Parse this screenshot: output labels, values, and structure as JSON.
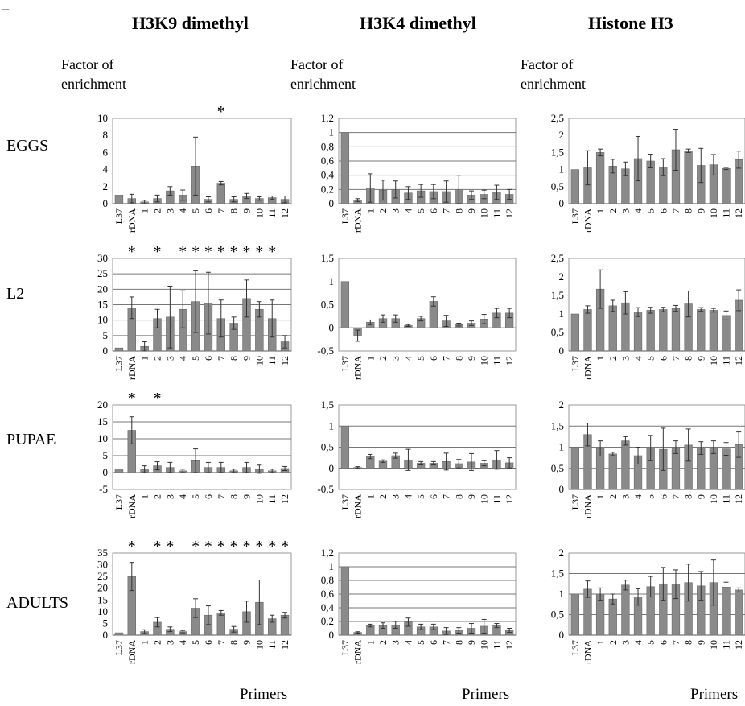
{
  "panel_letter": "_",
  "column_titles": [
    "H3K9 dimethyl",
    "H3K4 dimethyl",
    "Histone H3"
  ],
  "ylabel_line1": "Factor of",
  "ylabel_line2": "enrichment",
  "row_labels": [
    "EGGS",
    "L2",
    "PUPAE",
    "ADULTS"
  ],
  "xlabel": "Primers",
  "colors": {
    "bar": "#8a8a8a",
    "bar_edge": "#6a6a6a",
    "grid": "#777777"
  },
  "chart_data": [
    {
      "id": "eggs-h3k9",
      "type": "bar",
      "categories": [
        "L37",
        "rDNA",
        "1",
        "2",
        "3",
        "4",
        "5",
        "6",
        "7",
        "8",
        "9",
        "10",
        "11",
        "12"
      ],
      "ylim": [
        0,
        10
      ],
      "yticks": [
        "0",
        "2",
        "4",
        "6",
        "8",
        "10"
      ],
      "grid": false,
      "values": [
        1.0,
        0.6,
        0.2,
        0.6,
        1.5,
        1.0,
        4.4,
        0.5,
        2.4,
        0.5,
        0.9,
        0.6,
        0.7,
        0.5
      ],
      "errors": [
        0,
        0.5,
        0.2,
        0.4,
        0.5,
        0.6,
        3.4,
        0.3,
        0.2,
        0.3,
        0.3,
        0.2,
        0.2,
        0.4
      ],
      "significant": [
        "7"
      ]
    },
    {
      "id": "eggs-h3k4",
      "type": "bar",
      "categories": [
        "L37",
        "rDNA",
        "1",
        "2",
        "3",
        "4",
        "5",
        "6",
        "7",
        "8",
        "9",
        "10",
        "11",
        "12"
      ],
      "ylim": [
        0,
        1.2
      ],
      "yticks": [
        "0",
        "0,2",
        "0,4",
        "0,6",
        "0,8",
        "1",
        "1,2"
      ],
      "grid": true,
      "values": [
        1.0,
        0.05,
        0.22,
        0.19,
        0.2,
        0.15,
        0.18,
        0.17,
        0.17,
        0.2,
        0.12,
        0.13,
        0.16,
        0.13
      ],
      "errors": [
        0,
        0.02,
        0.2,
        0.14,
        0.12,
        0.09,
        0.09,
        0.1,
        0.15,
        0.2,
        0.06,
        0.06,
        0.1,
        0.07
      ],
      "significant": []
    },
    {
      "id": "eggs-h3",
      "type": "bar",
      "categories": [
        "L37",
        "rDNA",
        "1",
        "2",
        "3",
        "4",
        "5",
        "6",
        "7",
        "8",
        "9",
        "10",
        "11",
        "12"
      ],
      "ylim": [
        0,
        2.5
      ],
      "yticks": [
        "0",
        "0,5",
        "1",
        "1,5",
        "2",
        "2,5"
      ],
      "grid": false,
      "values": [
        1.0,
        1.05,
        1.5,
        1.1,
        1.02,
        1.32,
        1.25,
        1.07,
        1.58,
        1.55,
        1.12,
        1.14,
        1.03,
        1.29
      ],
      "errors": [
        0,
        0.5,
        0.1,
        0.2,
        0.2,
        0.65,
        0.2,
        0.25,
        0.6,
        0.05,
        0.5,
        0.3,
        0.03,
        0.25
      ],
      "significant": []
    },
    {
      "id": "l2-h3k9",
      "type": "bar",
      "categories": [
        "L37",
        "rDNA",
        "1",
        "2",
        "3",
        "4",
        "5",
        "6",
        "7",
        "8",
        "9",
        "10",
        "11",
        "12"
      ],
      "ylim": [
        0,
        30
      ],
      "yticks": [
        "0",
        "5",
        "10",
        "15",
        "20",
        "25",
        "30"
      ],
      "grid": true,
      "values": [
        1,
        14,
        1.5,
        10.5,
        11,
        13.5,
        16,
        15.5,
        10.5,
        9,
        17,
        13.5,
        10.5,
        3
      ],
      "errors": [
        0,
        3.5,
        1.5,
        3,
        10,
        6,
        10,
        10,
        6,
        2,
        6,
        2.5,
        6,
        2
      ],
      "significant": [
        "rDNA",
        "2",
        "4",
        "5",
        "6",
        "7",
        "8",
        "9",
        "10",
        "11"
      ]
    },
    {
      "id": "l2-h3k4",
      "type": "bar",
      "categories": [
        "L37",
        "rDNA",
        "1",
        "2",
        "3",
        "4",
        "5",
        "6",
        "7",
        "8",
        "9",
        "10",
        "11",
        "12"
      ],
      "ylim": [
        -0.5,
        1.5
      ],
      "yticks": [
        "-0,5",
        "0",
        "0,5",
        "1",
        "1,5"
      ],
      "grid": false,
      "values": [
        1.0,
        -0.17,
        0.12,
        0.2,
        0.2,
        0.05,
        0.2,
        0.57,
        0.15,
        0.07,
        0.1,
        0.19,
        0.32,
        0.32
      ],
      "errors": [
        0,
        0.12,
        0.05,
        0.08,
        0.08,
        0.02,
        0.05,
        0.1,
        0.12,
        0.03,
        0.05,
        0.1,
        0.1,
        0.1
      ],
      "significant": []
    },
    {
      "id": "l2-h3",
      "type": "bar",
      "categories": [
        "L37",
        "rDNA",
        "1",
        "2",
        "3",
        "4",
        "5",
        "6",
        "7",
        "8",
        "9",
        "10",
        "11",
        "12"
      ],
      "ylim": [
        0,
        2.5
      ],
      "yticks": [
        "0",
        "0,5",
        "1",
        "1,5",
        "2",
        "2,5"
      ],
      "grid": false,
      "values": [
        1.0,
        1.12,
        1.67,
        1.22,
        1.3,
        1.05,
        1.1,
        1.12,
        1.15,
        1.27,
        1.12,
        1.1,
        0.96,
        1.37
      ],
      "errors": [
        0,
        0.1,
        0.52,
        0.15,
        0.3,
        0.12,
        0.08,
        0.06,
        0.08,
        0.35,
        0.05,
        0.05,
        0.12,
        0.28
      ],
      "significant": []
    },
    {
      "id": "pupae-h3k9",
      "type": "bar",
      "categories": [
        "L37",
        "rDNA",
        "1",
        "2",
        "3",
        "4",
        "5",
        "6",
        "7",
        "8",
        "9",
        "10",
        "11",
        "12"
      ],
      "ylim": [
        -5,
        20
      ],
      "yticks": [
        "-5",
        "0",
        "5",
        "10",
        "15",
        "20"
      ],
      "grid": true,
      "values": [
        1,
        12.5,
        1,
        2,
        1.5,
        0.5,
        3.5,
        1.5,
        1.5,
        0.5,
        1.5,
        1,
        0.5,
        1.2
      ],
      "errors": [
        0,
        4,
        1,
        1.2,
        1.5,
        0.5,
        3.5,
        1.5,
        1.5,
        0.5,
        1.5,
        1.2,
        0.5,
        0.6
      ],
      "significant": [
        "rDNA",
        "2"
      ]
    },
    {
      "id": "pupae-h3k4",
      "type": "bar",
      "categories": [
        "L37",
        "rDNA",
        "1",
        "2",
        "3",
        "4",
        "5",
        "6",
        "7",
        "8",
        "9",
        "10",
        "11",
        "12"
      ],
      "ylim": [
        -0.5,
        1.5
      ],
      "yticks": [
        "-0,5",
        "0",
        "0,5",
        "1",
        "1,5"
      ],
      "grid": true,
      "values": [
        1.0,
        0.02,
        0.28,
        0.17,
        0.3,
        0.2,
        0.12,
        0.12,
        0.16,
        0.11,
        0.15,
        0.12,
        0.2,
        0.13
      ],
      "errors": [
        0,
        0.02,
        0.05,
        0.03,
        0.06,
        0.25,
        0.04,
        0.04,
        0.2,
        0.1,
        0.2,
        0.06,
        0.22,
        0.12
      ],
      "significant": []
    },
    {
      "id": "pupae-h3",
      "type": "bar",
      "categories": [
        "L37",
        "rDNA",
        "1",
        "2",
        "3",
        "4",
        "5",
        "6",
        "7",
        "8",
        "9",
        "10",
        "11",
        "12"
      ],
      "ylim": [
        0,
        2
      ],
      "yticks": [
        "0",
        "0,5",
        "1",
        "1,5",
        "2"
      ],
      "grid": true,
      "values": [
        1.0,
        1.3,
        0.97,
        0.84,
        1.15,
        0.8,
        0.98,
        0.95,
        1.0,
        1.05,
        0.98,
        1.0,
        0.96,
        1.06
      ],
      "errors": [
        0,
        0.27,
        0.18,
        0.04,
        0.1,
        0.2,
        0.3,
        0.5,
        0.15,
        0.38,
        0.15,
        0.15,
        0.15,
        0.3
      ],
      "significant": []
    },
    {
      "id": "adults-h3k9",
      "type": "bar",
      "categories": [
        "L37",
        "rDNA",
        "1",
        "2",
        "3",
        "4",
        "5",
        "6",
        "7",
        "8",
        "9",
        "10",
        "11",
        "12"
      ],
      "ylim": [
        0,
        35
      ],
      "yticks": [
        "0",
        "5",
        "10",
        "15",
        "20",
        "25",
        "30",
        "35"
      ],
      "grid": false,
      "values": [
        1,
        25,
        1.5,
        5.5,
        2.5,
        1.5,
        11.5,
        8.5,
        9.5,
        2.5,
        10,
        14,
        7,
        8.5
      ],
      "errors": [
        0,
        6,
        0.8,
        2,
        1,
        0.5,
        4,
        4,
        1,
        1.2,
        4.5,
        9.5,
        1.5,
        1.2
      ],
      "significant": [
        "rDNA",
        "2",
        "3",
        "5",
        "6",
        "7",
        "8",
        "9",
        "10",
        "11",
        "12"
      ]
    },
    {
      "id": "adults-h3k4",
      "type": "bar",
      "categories": [
        "L37",
        "rDNA",
        "1",
        "2",
        "3",
        "4",
        "5",
        "6",
        "7",
        "8",
        "9",
        "10",
        "11",
        "12"
      ],
      "ylim": [
        0,
        1.2
      ],
      "yticks": [
        "0",
        "0,2",
        "0,4",
        "0,6",
        "0,8",
        "1",
        "1,2"
      ],
      "grid": true,
      "values": [
        1.0,
        0.04,
        0.14,
        0.14,
        0.15,
        0.19,
        0.12,
        0.12,
        0.06,
        0.07,
        0.1,
        0.13,
        0.14,
        0.07
      ],
      "errors": [
        0,
        0.01,
        0.02,
        0.04,
        0.05,
        0.06,
        0.04,
        0.04,
        0.05,
        0.04,
        0.07,
        0.1,
        0.03,
        0.03
      ],
      "significant": []
    },
    {
      "id": "adults-h3",
      "type": "bar",
      "categories": [
        "L37",
        "rDNA",
        "1",
        "2",
        "3",
        "4",
        "5",
        "6",
        "7",
        "8",
        "9",
        "10",
        "11",
        "12"
      ],
      "ylim": [
        0,
        2
      ],
      "yticks": [
        "0",
        "0,5",
        "1",
        "1,5",
        "2"
      ],
      "grid": true,
      "values": [
        1.0,
        1.12,
        1.0,
        0.88,
        1.22,
        0.93,
        1.18,
        1.25,
        1.24,
        1.28,
        1.2,
        1.28,
        1.17,
        1.1
      ],
      "errors": [
        0,
        0.2,
        0.15,
        0.12,
        0.12,
        0.2,
        0.25,
        0.4,
        0.35,
        0.45,
        0.35,
        0.55,
        0.12,
        0.05
      ],
      "significant": []
    }
  ]
}
